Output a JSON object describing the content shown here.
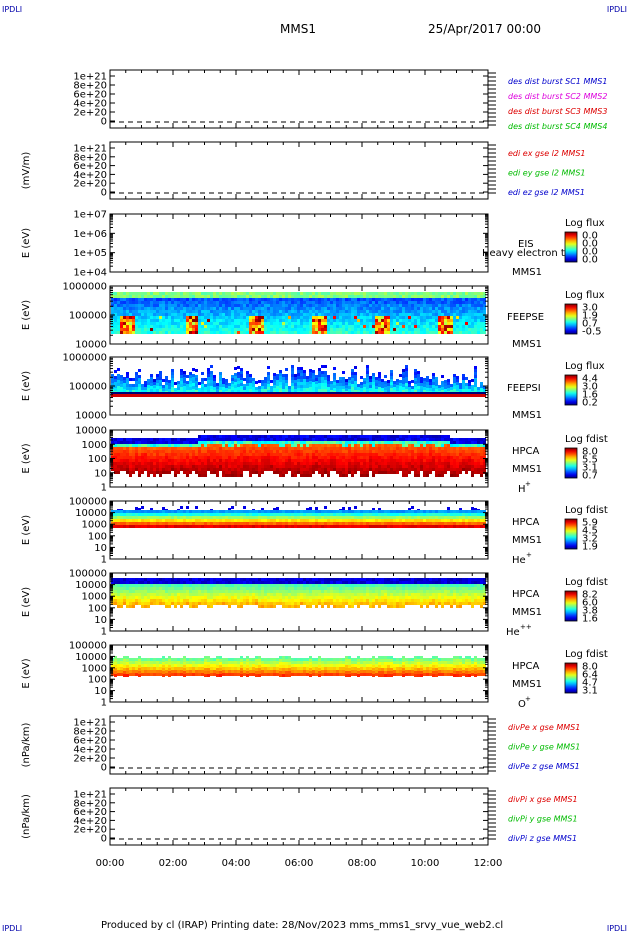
{
  "corners": {
    "tl": "IPDLI",
    "tr": "IPDLI",
    "bl": "IPDLI",
    "br": "IPDLI"
  },
  "header": {
    "spacecraft": "MMS1",
    "date": "25/Apr/2017 00:00"
  },
  "footer": {
    "text": "Produced by cl (IRAP)   Printing date: 28/Nov/2023   mms_mms1_srvy_vue_web2.cl"
  },
  "colors": {
    "red": "#dd0000",
    "green": "#00bb00",
    "blue": "#0000cc",
    "magenta": "#dd00dd"
  },
  "chart_data": {
    "type": "heatmap",
    "x_ticks": [
      "00:00",
      "02:00",
      "04:00",
      "06:00",
      "08:00",
      "10:00",
      "12:00"
    ],
    "x_range_hours": [
      0,
      12
    ],
    "panels": [
      {
        "kind": "line",
        "ylabel": "",
        "yticks": [
          "1e+21",
          "8e+20",
          "6e+20",
          "4e+20",
          "2e+20",
          "0"
        ],
        "legend": [
          {
            "text": "des dist burst SC1 MMS1",
            "color": "#0000cc"
          },
          {
            "text": "des dist burst SC2 MMS2",
            "color": "#dd00dd"
          },
          {
            "text": "des dist burst SC3 MMS3",
            "color": "#dd0000"
          },
          {
            "text": "des dist burst SC4 MMS4",
            "color": "#00bb00"
          }
        ]
      },
      {
        "kind": "line",
        "ylabel": "(mV/m)",
        "yticks": [
          "1e+21",
          "8e+20",
          "6e+20",
          "4e+20",
          "2e+20",
          "0"
        ],
        "legend": [
          {
            "text": "edi ex gse l2 MMS1",
            "color": "#dd0000"
          },
          {
            "text": "edi ey gse l2 MMS1",
            "color": "#00bb00"
          },
          {
            "text": "edi ez gse l2 MMS1",
            "color": "#0000cc"
          }
        ]
      },
      {
        "kind": "empty",
        "ylabel": "E (eV)",
        "yticks": [
          "1e+07",
          "1e+06",
          "1e+05",
          "1e+04"
        ],
        "instrument": [
          "EIS",
          "MMS1"
        ],
        "overlay": "Heavy electron to",
        "cb_title": "Log flux",
        "cb_ticks": [
          "0.0",
          "0.0",
          "0.0",
          "0.0"
        ]
      },
      {
        "kind": "spec",
        "style": "feepse",
        "ylabel": "E (eV)",
        "yticks": [
          "1000000",
          "100000",
          "10000"
        ],
        "instrument": [
          "FEEPSE",
          "MMS1"
        ],
        "cb_title": "Log flux",
        "cb_ticks": [
          "3.0",
          "1.9",
          "0.7",
          "-0.5"
        ]
      },
      {
        "kind": "spec",
        "style": "feepsi",
        "ylabel": "E (eV)",
        "yticks": [
          "1000000",
          "100000",
          "10000"
        ],
        "instrument": [
          "FEEPSI",
          "MMS1"
        ],
        "cb_title": "Log flux",
        "cb_ticks": [
          "4.4",
          "3.0",
          "1.6",
          "0.2"
        ]
      },
      {
        "kind": "spec",
        "style": "hplus",
        "ylabel": "E (eV)",
        "yticks": [
          "10000",
          "1000",
          "100",
          "10",
          "1"
        ],
        "instrument": [
          "HPCA",
          "MMS1"
        ],
        "ion": "H",
        "ion_sup": "+",
        "cb_title": "Log fdist",
        "cb_ticks": [
          "8.0",
          "5.5",
          "3.1",
          "0.7"
        ]
      },
      {
        "kind": "spec",
        "style": "heplus",
        "ylabel": "E (eV)",
        "yticks": [
          "100000",
          "10000",
          "1000",
          "100",
          "10",
          "1"
        ],
        "instrument": [
          "HPCA",
          "MMS1"
        ],
        "ion": "He",
        "ion_sup": "+",
        "cb_title": "Log fdist",
        "cb_ticks": [
          "5.9",
          "4.5",
          "3.2",
          "1.9"
        ]
      },
      {
        "kind": "spec",
        "style": "hepp",
        "ylabel": "E (eV)",
        "yticks": [
          "100000",
          "10000",
          "1000",
          "100",
          "10",
          "1"
        ],
        "instrument": [
          "HPCA",
          "MMS1"
        ],
        "ion": "He",
        "ion_sup": "++",
        "cb_title": "Log fdist",
        "cb_ticks": [
          "8.2",
          "6.0",
          "3.8",
          "1.6"
        ]
      },
      {
        "kind": "spec",
        "style": "oplus",
        "ylabel": "E (eV)",
        "yticks": [
          "100000",
          "10000",
          "1000",
          "100",
          "10",
          "1"
        ],
        "instrument": [
          "HPCA",
          "MMS1"
        ],
        "ion": "O",
        "ion_sup": "+",
        "cb_title": "Log fdist",
        "cb_ticks": [
          "8.0",
          "6.4",
          "4.7",
          "3.1"
        ]
      },
      {
        "kind": "line",
        "ylabel": "(nPa/km)",
        "yticks": [
          "1e+21",
          "8e+20",
          "6e+20",
          "4e+20",
          "2e+20",
          "0"
        ],
        "legend": [
          {
            "text": "divPe x gse MMS1",
            "color": "#dd0000"
          },
          {
            "text": "divPe y gse MMS1",
            "color": "#00bb00"
          },
          {
            "text": "divPe z gse MMS1",
            "color": "#0000cc"
          }
        ]
      },
      {
        "kind": "line",
        "ylabel": "(nPa/km)",
        "yticks": [
          "1e+21",
          "8e+20",
          "6e+20",
          "4e+20",
          "2e+20",
          "0"
        ],
        "legend": [
          {
            "text": "divPi x gse MMS1",
            "color": "#dd0000"
          },
          {
            "text": "divPi y gse MMS1",
            "color": "#00bb00"
          },
          {
            "text": "divPi z gse MMS1",
            "color": "#0000cc"
          }
        ]
      }
    ]
  }
}
